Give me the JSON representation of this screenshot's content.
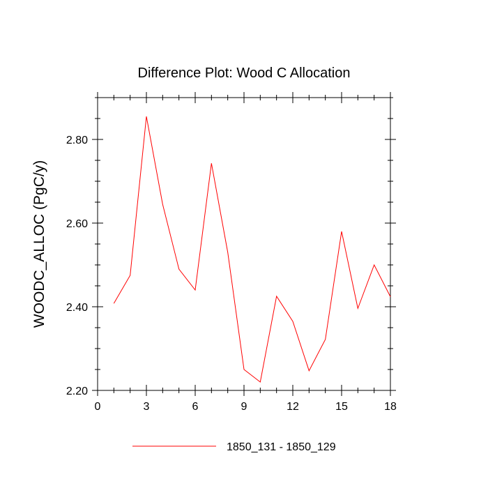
{
  "chart_data": {
    "type": "line",
    "title": "Difference Plot: Wood C Allocation",
    "xlabel": "",
    "ylabel": "WOODC_ALLOC  (PgC/y)",
    "xlim": [
      0,
      18
    ],
    "ylim": [
      2.2,
      2.9
    ],
    "x_ticks": [
      0,
      3,
      6,
      9,
      12,
      15,
      18
    ],
    "x_tick_labels": [
      "0",
      "3",
      "6",
      "9",
      "12",
      "15",
      "18"
    ],
    "y_ticks": [
      2.2,
      2.4,
      2.6,
      2.8
    ],
    "y_tick_labels": [
      "2.20",
      "2.40",
      "2.60",
      "2.80"
    ],
    "grid": false,
    "legend_position": "bottom",
    "series": [
      {
        "name": "1850_131 - 1850_129",
        "color": "#ff0000",
        "x": [
          1,
          2,
          3,
          4,
          5,
          6,
          7,
          8,
          9,
          10,
          11,
          12,
          13,
          14,
          15,
          16,
          17,
          18
        ],
        "y": [
          2.408,
          2.475,
          2.855,
          2.645,
          2.49,
          2.44,
          2.743,
          2.53,
          2.25,
          2.22,
          2.425,
          2.365,
          2.247,
          2.322,
          2.58,
          2.396,
          2.5,
          2.424
        ]
      }
    ]
  }
}
